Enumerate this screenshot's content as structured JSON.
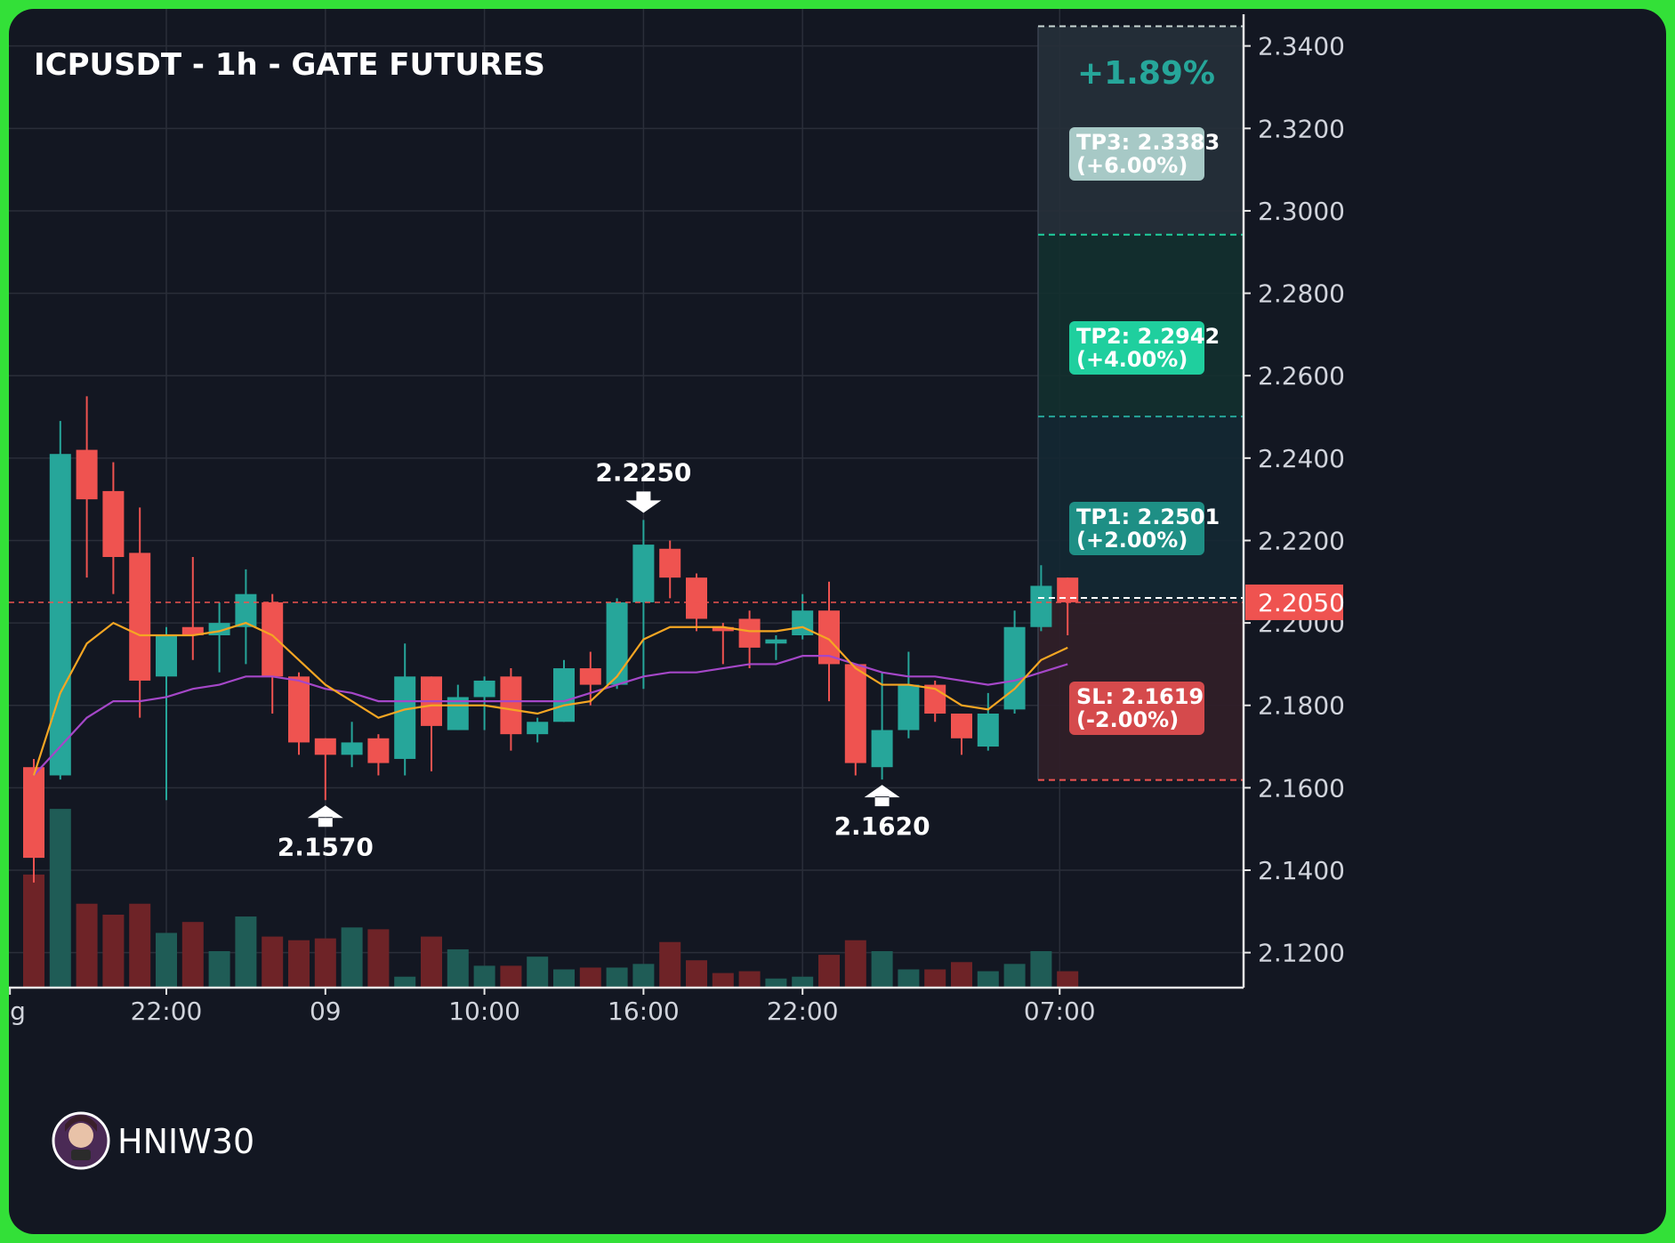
{
  "header": {
    "title": "ICPUSDT - 1h - GATE FUTURES",
    "change_pct": "+1.89%"
  },
  "watermark": {
    "username": "HNIW30"
  },
  "current_price_label": "2.2050",
  "levels": [
    {
      "name": "tp3",
      "label_line1": "TP3: 2.3383",
      "label_line2": "(+6.00%)",
      "price": 2.3383,
      "color": "#a7c9c6"
    },
    {
      "name": "tp2",
      "label_line1": "TP2: 2.2942",
      "label_line2": "(+4.00%)",
      "price": 2.2942,
      "color": "#1fcf9e"
    },
    {
      "name": "tp1",
      "label_line1": "TP1: 2.2501",
      "label_line2": "(+2.00%)",
      "price": 2.2501,
      "color": "#1e8f85"
    },
    {
      "name": "sl",
      "label_line1": "SL: 2.1619",
      "label_line2": "(-2.00%)",
      "price": 2.1619,
      "color": "#d54a4c"
    }
  ],
  "markers": [
    {
      "label": "2.2250",
      "index": 23,
      "price": 2.225,
      "direction": "down"
    },
    {
      "label": "2.1570",
      "index": 11,
      "price": 2.157,
      "direction": "up"
    },
    {
      "label": "2.1620",
      "index": 32,
      "price": 2.162,
      "direction": "up"
    }
  ],
  "chart_data": {
    "type": "candlestick",
    "title": "ICPUSDT - 1h - GATE FUTURES",
    "ylim": [
      2.1115,
      2.349
    ],
    "y_ticks": [
      "2.3400",
      "2.3200",
      "2.3000",
      "2.2800",
      "2.2600",
      "2.2400",
      "2.2200",
      "2.2000",
      "2.1800",
      "2.1600",
      "2.1400",
      "2.1200"
    ],
    "y_tick_values": [
      2.34,
      2.32,
      2.3,
      2.28,
      2.26,
      2.24,
      2.22,
      2.2,
      2.18,
      2.16,
      2.14,
      2.12
    ],
    "x_ticks": [
      {
        "label": "ug",
        "index": -0.9
      },
      {
        "label": "22:00",
        "index": 5
      },
      {
        "label": "09",
        "index": 11
      },
      {
        "label": "10:00",
        "index": 17
      },
      {
        "label": "16:00",
        "index": 23
      },
      {
        "label": "22:00",
        "index": 29
      },
      {
        "label": "07:00",
        "index": 38.7
      }
    ],
    "entry_price": 2.205,
    "candles": [
      {
        "o": 2.165,
        "h": 2.167,
        "l": 2.137,
        "c": 2.143
      },
      {
        "o": 2.163,
        "h": 2.249,
        "l": 2.162,
        "c": 2.241
      },
      {
        "o": 2.242,
        "h": 2.255,
        "l": 2.211,
        "c": 2.23
      },
      {
        "o": 2.232,
        "h": 2.239,
        "l": 2.207,
        "c": 2.216
      },
      {
        "o": 2.217,
        "h": 2.228,
        "l": 2.177,
        "c": 2.186
      },
      {
        "o": 2.187,
        "h": 2.199,
        "l": 2.157,
        "c": 2.197
      },
      {
        "o": 2.199,
        "h": 2.216,
        "l": 2.191,
        "c": 2.197
      },
      {
        "o": 2.197,
        "h": 2.205,
        "l": 2.188,
        "c": 2.2
      },
      {
        "o": 2.199,
        "h": 2.213,
        "l": 2.19,
        "c": 2.207
      },
      {
        "o": 2.205,
        "h": 2.207,
        "l": 2.178,
        "c": 2.187
      },
      {
        "o": 2.187,
        "h": 2.188,
        "l": 2.168,
        "c": 2.171
      },
      {
        "o": 2.172,
        "h": 2.172,
        "l": 2.157,
        "c": 2.168
      },
      {
        "o": 2.168,
        "h": 2.176,
        "l": 2.165,
        "c": 2.171
      },
      {
        "o": 2.172,
        "h": 2.173,
        "l": 2.163,
        "c": 2.166
      },
      {
        "o": 2.167,
        "h": 2.195,
        "l": 2.163,
        "c": 2.187
      },
      {
        "o": 2.187,
        "h": 2.187,
        "l": 2.164,
        "c": 2.175
      },
      {
        "o": 2.174,
        "h": 2.185,
        "l": 2.174,
        "c": 2.182
      },
      {
        "o": 2.182,
        "h": 2.187,
        "l": 2.174,
        "c": 2.186
      },
      {
        "o": 2.187,
        "h": 2.189,
        "l": 2.169,
        "c": 2.173
      },
      {
        "o": 2.173,
        "h": 2.177,
        "l": 2.171,
        "c": 2.176
      },
      {
        "o": 2.176,
        "h": 2.191,
        "l": 2.176,
        "c": 2.189
      },
      {
        "o": 2.189,
        "h": 2.193,
        "l": 2.18,
        "c": 2.185
      },
      {
        "o": 2.185,
        "h": 2.206,
        "l": 2.184,
        "c": 2.205
      },
      {
        "o": 2.205,
        "h": 2.225,
        "l": 2.184,
        "c": 2.219
      },
      {
        "o": 2.218,
        "h": 2.22,
        "l": 2.206,
        "c": 2.211
      },
      {
        "o": 2.211,
        "h": 2.212,
        "l": 2.198,
        "c": 2.201
      },
      {
        "o": 2.199,
        "h": 2.2,
        "l": 2.19,
        "c": 2.198
      },
      {
        "o": 2.201,
        "h": 2.203,
        "l": 2.189,
        "c": 2.194
      },
      {
        "o": 2.195,
        "h": 2.197,
        "l": 2.191,
        "c": 2.196
      },
      {
        "o": 2.197,
        "h": 2.207,
        "l": 2.196,
        "c": 2.203
      },
      {
        "o": 2.203,
        "h": 2.21,
        "l": 2.181,
        "c": 2.19
      },
      {
        "o": 2.19,
        "h": 2.19,
        "l": 2.163,
        "c": 2.166
      },
      {
        "o": 2.165,
        "h": 2.188,
        "l": 2.162,
        "c": 2.174
      },
      {
        "o": 2.174,
        "h": 2.193,
        "l": 2.172,
        "c": 2.185
      },
      {
        "o": 2.185,
        "h": 2.186,
        "l": 2.176,
        "c": 2.178
      },
      {
        "o": 2.178,
        "h": 2.178,
        "l": 2.168,
        "c": 2.172
      },
      {
        "o": 2.17,
        "h": 2.183,
        "l": 2.169,
        "c": 2.178
      },
      {
        "o": 2.179,
        "h": 2.203,
        "l": 2.178,
        "c": 2.199
      },
      {
        "o": 2.199,
        "h": 2.214,
        "l": 2.198,
        "c": 2.209
      },
      {
        "o": 2.211,
        "h": 2.211,
        "l": 2.197,
        "c": 2.205
      }
    ],
    "ema_fast": [
      2.163,
      2.183,
      2.195,
      2.2,
      2.197,
      2.197,
      2.197,
      2.198,
      2.2,
      2.197,
      2.191,
      2.185,
      2.181,
      2.177,
      2.179,
      2.18,
      2.18,
      2.18,
      2.179,
      2.178,
      2.18,
      2.181,
      2.187,
      2.196,
      2.199,
      2.199,
      2.199,
      2.198,
      2.198,
      2.199,
      2.196,
      2.189,
      2.185,
      2.185,
      2.184,
      2.18,
      2.179,
      2.184,
      2.191,
      2.194
    ],
    "ema_slow": [
      2.163,
      2.17,
      2.177,
      2.181,
      2.181,
      2.182,
      2.184,
      2.185,
      2.187,
      2.187,
      2.186,
      2.184,
      2.183,
      2.181,
      2.181,
      2.181,
      2.181,
      2.181,
      2.181,
      2.181,
      2.181,
      2.183,
      2.185,
      2.187,
      2.188,
      2.188,
      2.189,
      2.19,
      2.19,
      2.192,
      2.192,
      2.19,
      2.188,
      2.187,
      2.187,
      2.186,
      2.185,
      2.186,
      2.188,
      2.19
    ],
    "volumes": [
      0.62,
      0.98,
      0.46,
      0.4,
      0.46,
      0.3,
      0.36,
      0.2,
      0.39,
      0.28,
      0.26,
      0.27,
      0.33,
      0.32,
      0.06,
      0.28,
      0.21,
      0.12,
      0.12,
      0.17,
      0.1,
      0.11,
      0.11,
      0.13,
      0.25,
      0.15,
      0.08,
      0.09,
      0.05,
      0.06,
      0.18,
      0.26,
      0.2,
      0.1,
      0.1,
      0.14,
      0.09,
      0.13,
      0.2,
      0.09
    ],
    "colors": {
      "up": "#26a69a",
      "down": "#ef5350",
      "ema_fast": "#f5a623",
      "ema_slow": "#a547c8"
    }
  }
}
